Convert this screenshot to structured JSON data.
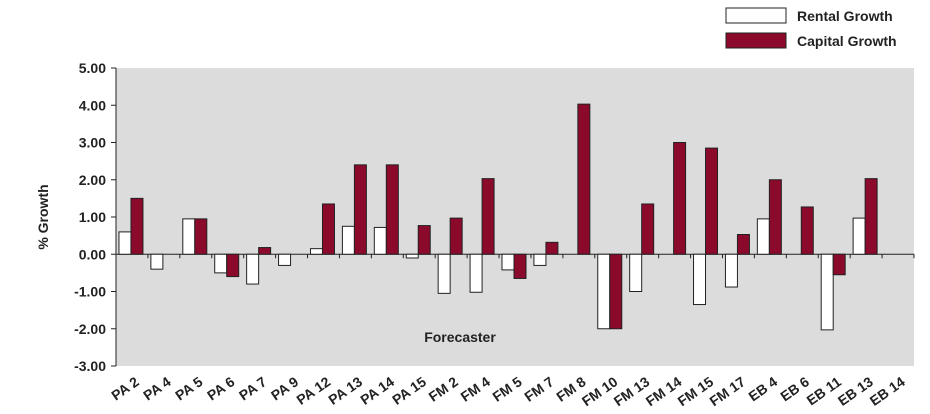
{
  "chart_data": {
    "type": "bar",
    "xlabel": "Forecaster",
    "ylabel": "% Growth",
    "ylim": [
      -3,
      5
    ],
    "yticks": [
      "5.00",
      "4.00",
      "3.00",
      "2.00",
      "1.00",
      "0.00",
      "-1.00",
      "-2.00",
      "-3.00"
    ],
    "grid": false,
    "legend_position": "top-right",
    "categories": [
      "PA 2",
      "PA 4",
      "PA 5",
      "PA 6",
      "PA 7",
      "PA 9",
      "PA 12",
      "PA 13",
      "PA 14",
      "PA 15",
      "FM 2",
      "FM 4",
      "FM 5",
      "FM 7",
      "FM 8",
      "FM 10",
      "FM 13",
      "FM 14",
      "FM 15",
      "FM 17",
      "EB 4",
      "EB 6",
      "EB 11",
      "EB 13",
      "EB 14"
    ],
    "series": [
      {
        "name": "Rental Growth",
        "color": "#ffffff",
        "values": [
          0.6,
          -0.4,
          0.95,
          -0.5,
          -0.8,
          -0.3,
          0.15,
          0.75,
          0.72,
          -0.1,
          -1.05,
          -1.02,
          -0.42,
          -0.3,
          0.0,
          -2.0,
          -1.0,
          0.0,
          -1.35,
          -0.88,
          0.95,
          0.0,
          -2.03,
          0.97,
          0.0
        ]
      },
      {
        "name": "Capital Growth",
        "color": "#8b0a2c",
        "values": [
          1.5,
          0.0,
          0.95,
          -0.6,
          0.18,
          0.0,
          1.35,
          2.4,
          2.4,
          0.77,
          0.97,
          2.03,
          -0.65,
          0.32,
          4.03,
          -2.0,
          1.35,
          3.0,
          2.85,
          0.53,
          2.0,
          1.27,
          -0.55,
          2.03,
          0.0
        ]
      }
    ]
  }
}
